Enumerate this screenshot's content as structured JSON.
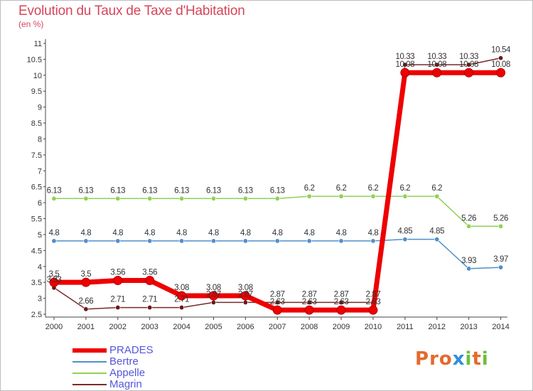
{
  "page": {
    "title": "Evolution du Taux de Taxe d'Habitation",
    "subtitle": "(en %)"
  },
  "brand": {
    "text": "Proxiti",
    "colors": [
      "#e36b2c",
      "#2f8fd6",
      "#6bbf3a"
    ]
  },
  "chart_data": {
    "type": "line",
    "title": "Evolution du Taux de Taxe d'Habitation",
    "ylabel": "(en %)",
    "xlabel": "",
    "x": [
      "2000",
      "2001",
      "2002",
      "2003",
      "2004",
      "2005",
      "2006",
      "2007",
      "2008",
      "2009",
      "2010",
      "2011",
      "2012",
      "2013",
      "2014"
    ],
    "ylim": [
      2.5,
      11
    ],
    "yticks": [
      2.5,
      3,
      3.5,
      4,
      4.5,
      5,
      5.5,
      6,
      6.5,
      7,
      7.5,
      8,
      8.5,
      9,
      9.5,
      10,
      10.5,
      11
    ],
    "ytick_labels": [
      "2.5",
      "3",
      "3.5",
      "4",
      "4.5",
      "5",
      "5.5",
      "6",
      "6.5",
      "7",
      "7.5",
      "8",
      "8.5",
      "9",
      "9.5",
      "10",
      "10.5",
      "11"
    ],
    "grid": false,
    "legend_position": "bottom-left",
    "series": [
      {
        "name": "Appelle",
        "color": "#8fd255",
        "width": 1.5,
        "marker_fill": "#8fd255",
        "values": [
          6.13,
          6.13,
          6.13,
          6.13,
          6.13,
          6.13,
          6.13,
          6.13,
          6.2,
          6.2,
          6.2,
          6.2,
          6.2,
          5.26,
          5.26
        ],
        "labels": [
          "6.13",
          "6.13",
          "6.13",
          "6.13",
          "6.13",
          "6.13",
          "6.13",
          "6.13",
          "6.2",
          "6.2",
          "6.2",
          "6.2",
          "6.2",
          "5.26",
          "5.26"
        ]
      },
      {
        "name": "Bertre",
        "color": "#4f90c8",
        "width": 1.5,
        "marker_fill": "#4f90c8",
        "values": [
          4.8,
          4.8,
          4.8,
          4.8,
          4.8,
          4.8,
          4.8,
          4.8,
          4.8,
          4.8,
          4.8,
          4.85,
          4.85,
          3.93,
          3.97
        ],
        "labels": [
          "4.8",
          "4.8",
          "4.8",
          "4.8",
          "4.8",
          "4.8",
          "4.8",
          "4.8",
          "4.8",
          "4.8",
          "4.8",
          "4.85",
          "4.85",
          "3.93",
          "3.97"
        ]
      },
      {
        "name": "Magrin",
        "color": "#7a2a2a",
        "width": 1.5,
        "marker_fill": "#6a1818",
        "values": [
          3.33,
          2.66,
          2.71,
          2.71,
          2.71,
          2.87,
          2.87,
          2.87,
          2.87,
          2.87,
          2.87,
          10.33,
          10.33,
          10.33,
          10.54
        ],
        "labels": [
          "3.33",
          "2.66",
          "2.71",
          "2.71",
          "2.71",
          "2.87",
          "2.87",
          "2.87",
          "2.87",
          "2.87",
          "2.87",
          "10.33",
          "10.33",
          "10.33",
          "10.54"
        ]
      },
      {
        "name": "PRADES",
        "color": "#ee0000",
        "width": 7,
        "marker_fill": "#ee0000",
        "values": [
          3.5,
          3.5,
          3.56,
          3.56,
          3.08,
          3.08,
          3.08,
          2.63,
          2.63,
          2.63,
          2.63,
          10.08,
          10.08,
          10.08,
          10.08
        ],
        "labels": [
          "3.5",
          "3.5",
          "3.56",
          "3.56",
          "3.08",
          "3.08",
          "3.08",
          "2.63",
          "2.63",
          "2.63",
          "2.63",
          "10.08",
          "10.08",
          "10.08",
          "10.08"
        ]
      }
    ]
  },
  "legend": {
    "items": [
      {
        "label": "PRADES",
        "color": "#ee0000"
      },
      {
        "label": "Bertre",
        "color": "#4f90c8"
      },
      {
        "label": "Appelle",
        "color": "#8fd255"
      },
      {
        "label": "Magrin",
        "color": "#7a2a2a"
      }
    ]
  }
}
